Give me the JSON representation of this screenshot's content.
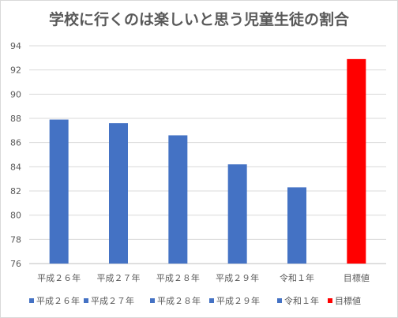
{
  "chart_data": {
    "type": "bar",
    "title": "学校に行くのは楽しいと思う児童生徒の割合",
    "categories": [
      "平成２６年",
      "平成２７年",
      "平成２８年",
      "平成２９年",
      "令和１年",
      "目標値"
    ],
    "values": [
      87.9,
      87.6,
      86.6,
      84.2,
      82.3,
      92.9
    ],
    "bar_colors": [
      "#4472c4",
      "#4472c4",
      "#4472c4",
      "#4472c4",
      "#4472c4",
      "#ff0000"
    ],
    "ylim": [
      76,
      94
    ],
    "yticks": [
      76,
      78,
      80,
      82,
      84,
      86,
      88,
      90,
      92,
      94
    ],
    "xlabel": "",
    "ylabel": "",
    "grid": true,
    "legend_position": "bottom",
    "legend": [
      {
        "label": "平成２６年",
        "color": "#4472c4"
      },
      {
        "label": "平成２７年",
        "color": "#4472c4"
      },
      {
        "label": "平成２８年",
        "color": "#4472c4"
      },
      {
        "label": "平成２９年",
        "color": "#4472c4"
      },
      {
        "label": "令和１年",
        "color": "#4472c4"
      },
      {
        "label": "目標値",
        "color": "#ff0000"
      }
    ]
  },
  "colors": {
    "gridline": "#d9d9d9",
    "axis": "#bfbfbf",
    "text": "#595959"
  }
}
